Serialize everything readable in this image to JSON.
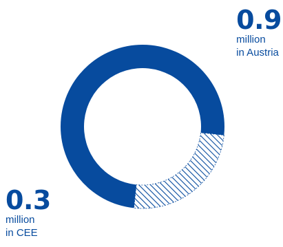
{
  "colors": {
    "primary": "#074b9e",
    "hatch": "#074b9e",
    "background": "#ffffff"
  },
  "labels": {
    "austria": {
      "value": "0.9",
      "line1": "million",
      "line2": "in Austria"
    },
    "cee": {
      "value": "0.3",
      "line1": "million",
      "line2": "in CEE"
    }
  },
  "chart_data": {
    "type": "pie",
    "style": "donut",
    "title": "",
    "slices": [
      {
        "label": "in Austria",
        "value": 0.9,
        "unit": "million",
        "fill": "solid"
      },
      {
        "label": "in CEE",
        "value": 0.3,
        "unit": "million",
        "fill": "hatched"
      }
    ]
  }
}
